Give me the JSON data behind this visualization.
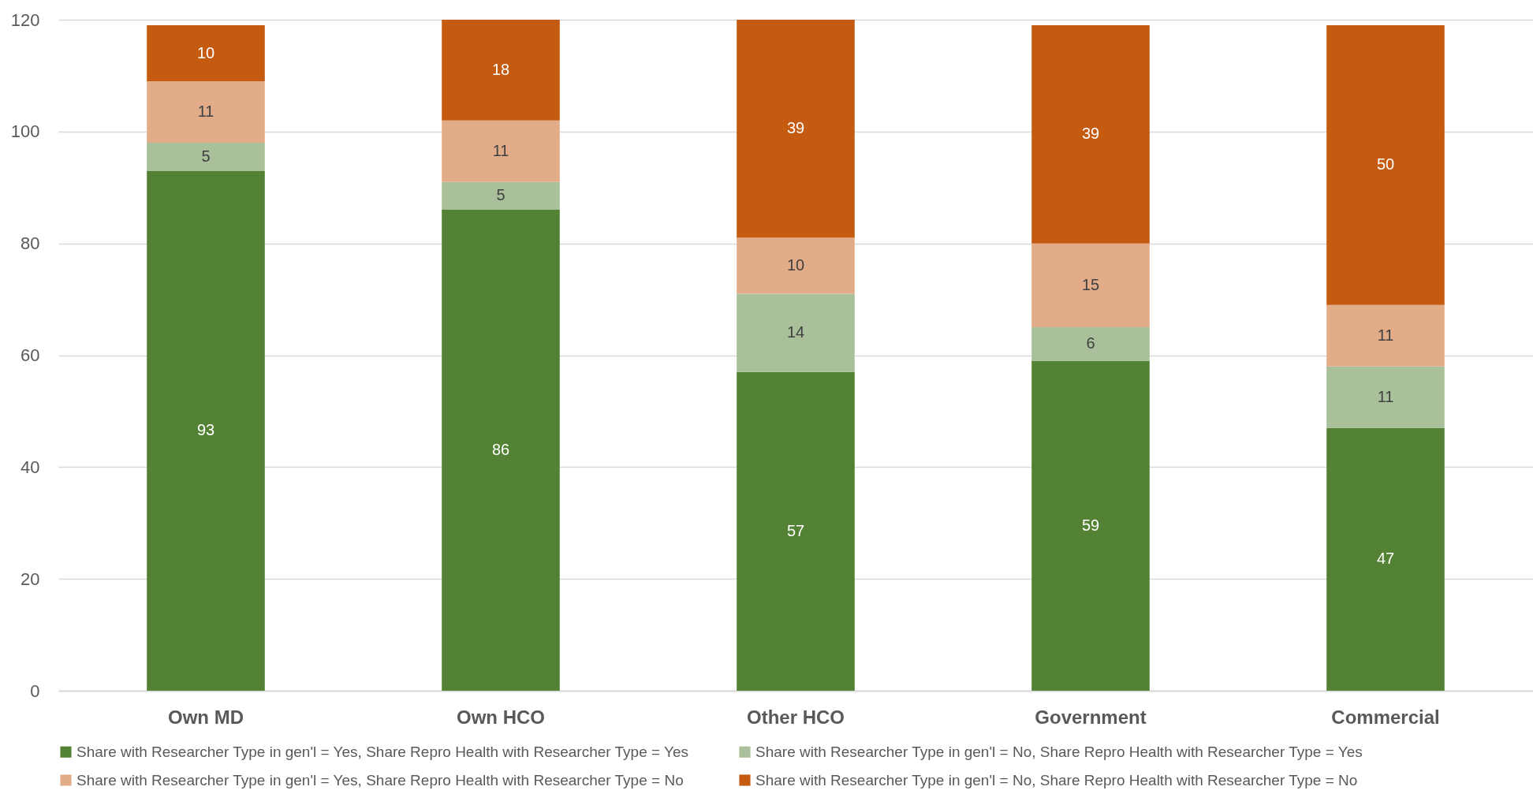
{
  "chart_data": {
    "type": "bar",
    "stacked": true,
    "data_labels": true,
    "grid": "y",
    "legend": "bottom",
    "categories": [
      "Own MD",
      "Own HCO",
      "Other HCO",
      "Government",
      "Commercial"
    ],
    "ylim": [
      0,
      120
    ],
    "yticks": [
      0,
      20,
      40,
      60,
      80,
      100,
      120
    ],
    "series": [
      {
        "name": "Share with Researcher Type in gen'l = Yes, Share Repro Health with Researcher Type = Yes",
        "color": "#548235",
        "values": [
          93,
          86,
          57,
          59,
          47
        ]
      },
      {
        "name": "Share with Researcher Type in gen'l = No, Share Repro Health with Researcher Type = Yes",
        "color": "#aac09a",
        "values": [
          5,
          5,
          14,
          6,
          11
        ]
      },
      {
        "name": "Share with Researcher Type in gen'l = Yes, Share Repro Health with Researcher Type = No",
        "color": "#e2ac88",
        "values": [
          11,
          11,
          10,
          15,
          11
        ]
      },
      {
        "name": "Share with Researcher Type in gen'l = No, Share Repro Health with Researcher Type = No",
        "color": "#c55a11",
        "values": [
          10,
          18,
          39,
          39,
          50
        ]
      }
    ]
  }
}
